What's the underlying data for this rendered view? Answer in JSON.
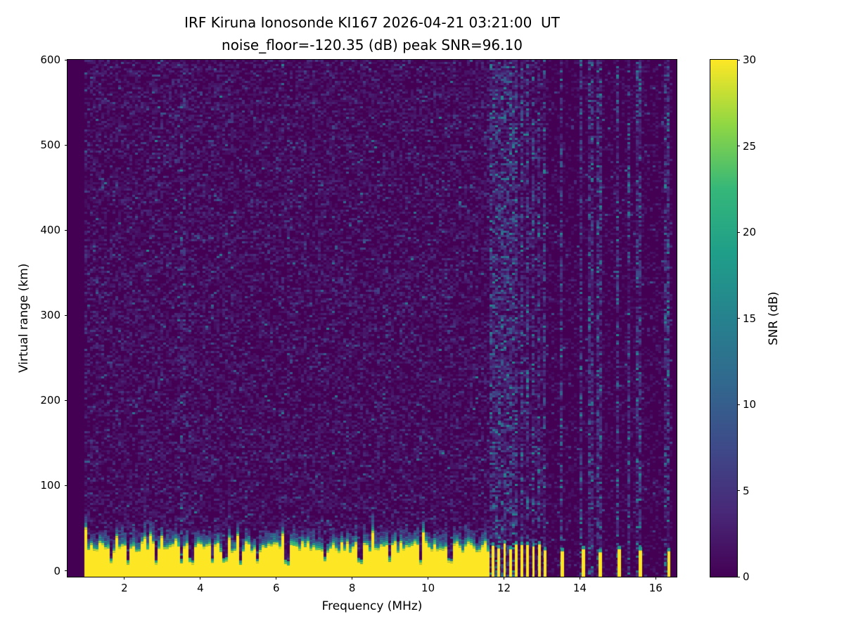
{
  "chart_data": {
    "type": "heatmap",
    "title_line1": "IRF Kiruna Ionosonde KI167 2026-04-21 03:21:00  UT",
    "title_line2": "noise_floor=-120.35 (dB) peak SNR=96.10",
    "xlabel": "Frequency (MHz)",
    "ylabel": "Virtual range (km)",
    "noise_floor_db": -120.35,
    "peak_snr_db": 96.1,
    "xlim": [
      0.5,
      16.55
    ],
    "ylim": [
      -7,
      600
    ],
    "xticks": [
      2,
      4,
      6,
      8,
      10,
      12,
      14,
      16
    ],
    "yticks": [
      0,
      100,
      200,
      300,
      400,
      500,
      600
    ],
    "grid": false,
    "legend": "none",
    "colorbar": {
      "label": "SNR (dB)",
      "min": 0,
      "max": 30,
      "ticks": [
        0,
        5,
        10,
        15,
        20,
        25,
        30
      ],
      "colormap": "viridis",
      "position": "right"
    },
    "features": {
      "seed": 167,
      "data_freq_start": 0.95,
      "data_freq_end": 16.42,
      "background_noise_mean_db": 1.5,
      "ground_band": {
        "freq_start": 0.95,
        "freq_end": 11.62,
        "top_km_mean": 26,
        "top_km_jitter": 12,
        "fringe_km": 16,
        "value_db": 30
      },
      "band_notches_mhz": [
        1.65,
        2.1,
        2.85,
        3.5,
        3.75,
        4.3,
        4.65,
        5.05,
        5.5,
        6.3,
        7.3,
        8.2,
        9.0,
        9.8,
        10.6
      ],
      "pulsed_band": {
        "freq_start": 11.68,
        "freq_end": 13.05,
        "spacing_mhz": 0.152,
        "bar_width_mhz": 0.07,
        "top_km": 26
      },
      "sparse_bars_mhz": [
        13.5,
        14.05,
        14.5,
        15.0,
        15.55,
        16.3
      ],
      "sparse_bar_width_mhz": 0.09,
      "sparse_bar_top_km": 22,
      "noisy_columns_mhz": [
        11.7,
        11.85,
        12.0,
        12.15,
        12.3,
        12.45,
        12.6,
        12.75,
        12.9,
        13.05,
        13.5,
        14.05,
        14.3,
        14.5,
        15.0,
        15.3,
        15.55,
        16.3
      ]
    },
    "viridis_stops": [
      [
        68,
        1,
        84
      ],
      [
        72,
        40,
        120
      ],
      [
        62,
        74,
        137
      ],
      [
        49,
        104,
        142
      ],
      [
        38,
        130,
        142
      ],
      [
        31,
        158,
        137
      ],
      [
        53,
        183,
        121
      ],
      [
        144,
        215,
        67
      ],
      [
        253,
        231,
        37
      ]
    ]
  }
}
